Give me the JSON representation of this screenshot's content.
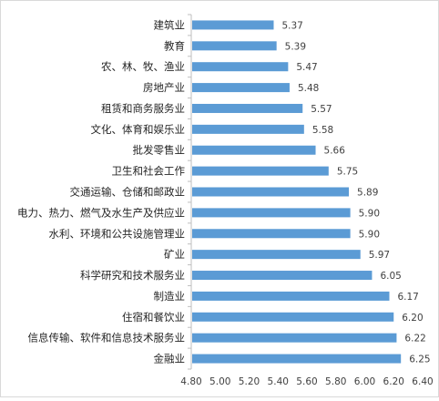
{
  "chart_data": {
    "type": "bar",
    "orientation": "horizontal",
    "categories": [
      "建筑业",
      "教育",
      "农、林、牧、渔业",
      "房地产业",
      "租赁和商务服务业",
      "文化、体育和娱乐业",
      "批发零售业",
      "卫生和社会工作",
      "交通运输、仓储和邮政业",
      "电力、热力、燃气及水生产及供应业",
      "水利、环境和公共设施管理业",
      "矿业",
      "科学研究和技术服务业",
      "制造业",
      "住宿和餐饮业",
      "信息传输、软件和信息技术服务业",
      "金融业"
    ],
    "values": [
      5.37,
      5.39,
      5.47,
      5.48,
      5.57,
      5.58,
      5.66,
      5.75,
      5.89,
      5.9,
      5.9,
      5.97,
      6.05,
      6.17,
      6.2,
      6.22,
      6.25
    ],
    "value_labels": [
      "5.37",
      "5.39",
      "5.47",
      "5.48",
      "5.57",
      "5.58",
      "5.66",
      "5.75",
      "5.89",
      "5.90",
      "5.90",
      "5.97",
      "6.05",
      "6.17",
      "6.20",
      "6.22",
      "6.25"
    ],
    "xlim": [
      4.8,
      6.4
    ],
    "xticks": [
      "4.80",
      "5.00",
      "5.20",
      "5.40",
      "5.60",
      "5.80",
      "6.00",
      "6.20",
      "6.40"
    ],
    "title": "",
    "xlabel": "",
    "ylabel": "",
    "grid": false,
    "legend": "none",
    "bar_color": "#5b9bd5",
    "axis_color": "#bfbfbf",
    "text_color": "#262626",
    "label_color": "#404040"
  }
}
